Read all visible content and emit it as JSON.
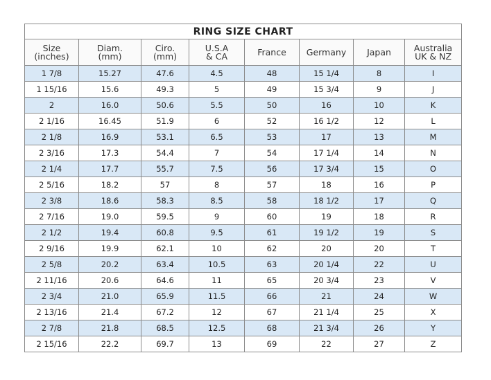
{
  "title": "RING SIZE  CHART",
  "headers": [
    [
      "Size",
      "(inches)"
    ],
    [
      "Diam.",
      "(mm)"
    ],
    [
      "Ciro.",
      "(mm)"
    ],
    [
      "U.S.A",
      "& CA"
    ],
    [
      "France",
      ""
    ],
    [
      "Germany",
      ""
    ],
    [
      "Japan",
      ""
    ],
    [
      "Australia",
      "UK & NZ"
    ]
  ],
  "row_highlight_color": "#d9e8f6",
  "rows": [
    [
      "1 7/8",
      "15.27",
      "47.6",
      "4.5",
      "48",
      "15 1/4",
      "8",
      "I"
    ],
    [
      "1 15/16",
      "15.6",
      "49.3",
      "5",
      "49",
      "15 3/4",
      "9",
      "J"
    ],
    [
      "2",
      "16.0",
      "50.6",
      "5.5",
      "50",
      "16",
      "10",
      "K"
    ],
    [
      "2 1/16",
      "16.45",
      "51.9",
      "6",
      "52",
      "16 1/2",
      "12",
      "L"
    ],
    [
      "2 1/8",
      "16.9",
      "53.1",
      "6.5",
      "53",
      "17",
      "13",
      "M"
    ],
    [
      "2 3/16",
      "17.3",
      "54.4",
      "7",
      "54",
      "17 1/4",
      "14",
      "N"
    ],
    [
      "2 1/4",
      "17.7",
      "55.7",
      "7.5",
      "56",
      "17 3/4",
      "15",
      "O"
    ],
    [
      "2 5/16",
      "18.2",
      "57",
      "8",
      "57",
      "18",
      "16",
      "P"
    ],
    [
      "2 3/8",
      "18.6",
      "58.3",
      "8.5",
      "58",
      "18 1/2",
      "17",
      "Q"
    ],
    [
      "2 7/16",
      "19.0",
      "59.5",
      "9",
      "60",
      "19",
      "18",
      "R"
    ],
    [
      "2 1/2",
      "19.4",
      "60.8",
      "9.5",
      "61",
      "19 1/2",
      "19",
      "S"
    ],
    [
      "2 9/16",
      "19.9",
      "62.1",
      "10",
      "62",
      "20",
      "20",
      "T"
    ],
    [
      "2 5/8",
      "20.2",
      "63.4",
      "10.5",
      "63",
      "20 1/4",
      "22",
      "U"
    ],
    [
      "2 11/16",
      "20.6",
      "64.6",
      "11",
      "65",
      "20 3/4",
      "23",
      "V"
    ],
    [
      "2 3/4",
      "21.0",
      "65.9",
      "11.5",
      "66",
      "21",
      "24",
      "W"
    ],
    [
      "2 13/16",
      "21.4",
      "67.2",
      "12",
      "67",
      "21 1/4",
      "25",
      "X"
    ],
    [
      "2 7/8",
      "21.8",
      "68.5",
      "12.5",
      "68",
      "21 3/4",
      "26",
      "Y"
    ],
    [
      "2 15/16",
      "22.2",
      "69.7",
      "13",
      "69",
      "22",
      "27",
      "Z"
    ]
  ]
}
